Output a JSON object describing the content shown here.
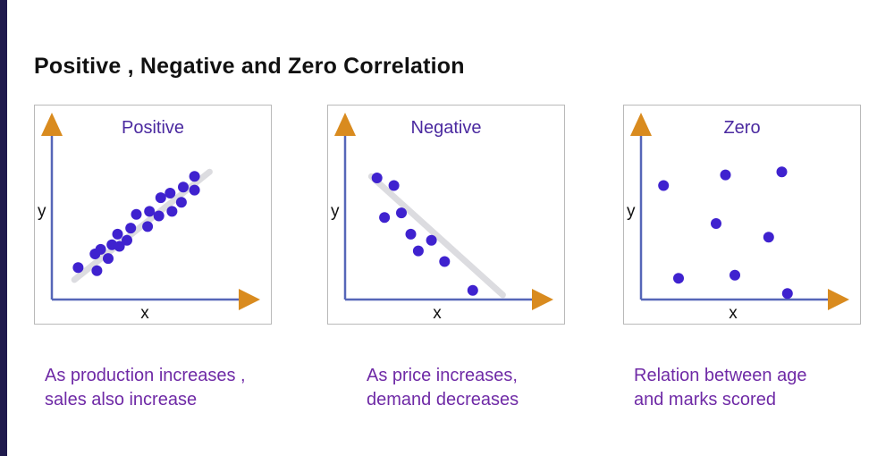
{
  "title": "Positive , Negative and Zero Correlation",
  "colors": {
    "point": "#3f22cf",
    "axis": "#5666b8",
    "arrow": "#d98b1f",
    "trend": "#dcdce0",
    "panel_title": "#4b2aa0",
    "caption": "#6f2aa6"
  },
  "chart_data": [
    {
      "type": "scatter",
      "title": "Positive",
      "xlabel": "x",
      "ylabel": "y",
      "xlim": [
        0,
        10
      ],
      "ylim": [
        0,
        10
      ],
      "grid": false,
      "trendline": [
        [
          1.2,
          1.3
        ],
        [
          8.4,
          8.4
        ]
      ],
      "points": [
        {
          "x": 1.4,
          "y": 2.1
        },
        {
          "x": 2.4,
          "y": 1.9
        },
        {
          "x": 2.3,
          "y": 3.0
        },
        {
          "x": 2.6,
          "y": 3.3
        },
        {
          "x": 3.0,
          "y": 2.7
        },
        {
          "x": 3.2,
          "y": 3.6
        },
        {
          "x": 3.6,
          "y": 3.5
        },
        {
          "x": 3.5,
          "y": 4.3
        },
        {
          "x": 4.0,
          "y": 3.9
        },
        {
          "x": 4.2,
          "y": 4.7
        },
        {
          "x": 4.5,
          "y": 5.6
        },
        {
          "x": 5.1,
          "y": 4.8
        },
        {
          "x": 5.2,
          "y": 5.8
        },
        {
          "x": 5.7,
          "y": 5.5
        },
        {
          "x": 5.8,
          "y": 6.7
        },
        {
          "x": 6.3,
          "y": 7.0
        },
        {
          "x": 6.4,
          "y": 5.8
        },
        {
          "x": 6.9,
          "y": 6.4
        },
        {
          "x": 7.0,
          "y": 7.4
        },
        {
          "x": 7.6,
          "y": 7.2
        },
        {
          "x": 7.6,
          "y": 8.1
        }
      ],
      "caption": [
        "As production increases ,",
        "sales also increase"
      ]
    },
    {
      "type": "scatter",
      "title": "Negative",
      "xlabel": "x",
      "ylabel": "y",
      "xlim": [
        0,
        10
      ],
      "ylim": [
        0,
        10
      ],
      "grid": false,
      "trendline": [
        [
          1.4,
          8.1
        ],
        [
          8.4,
          0.3
        ]
      ],
      "points": [
        {
          "x": 1.7,
          "y": 8.0
        },
        {
          "x": 2.6,
          "y": 7.5
        },
        {
          "x": 2.1,
          "y": 5.4
        },
        {
          "x": 3.0,
          "y": 5.7
        },
        {
          "x": 3.5,
          "y": 4.3
        },
        {
          "x": 4.6,
          "y": 3.9
        },
        {
          "x": 3.9,
          "y": 3.2
        },
        {
          "x": 5.3,
          "y": 2.5
        },
        {
          "x": 6.8,
          "y": 0.6
        }
      ],
      "caption": [
        "As price increases,",
        "demand decreases"
      ]
    },
    {
      "type": "scatter",
      "title": "Zero",
      "xlabel": "x",
      "ylabel": "y",
      "xlim": [
        0,
        10
      ],
      "ylim": [
        0,
        10
      ],
      "grid": false,
      "trendline": null,
      "points": [
        {
          "x": 1.2,
          "y": 7.5
        },
        {
          "x": 4.5,
          "y": 8.2
        },
        {
          "x": 7.5,
          "y": 8.4
        },
        {
          "x": 4.0,
          "y": 5.0
        },
        {
          "x": 6.8,
          "y": 4.1
        },
        {
          "x": 2.0,
          "y": 1.4
        },
        {
          "x": 5.0,
          "y": 1.6
        },
        {
          "x": 7.8,
          "y": 0.4
        }
      ],
      "caption": [
        "Relation between age",
        "and marks scored"
      ]
    }
  ]
}
